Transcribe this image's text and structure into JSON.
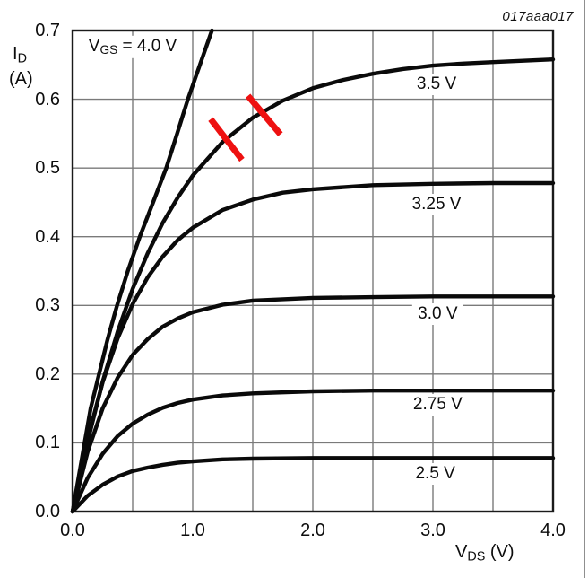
{
  "figure_id": "017aaa017",
  "colors": {
    "curve": "#0a0a0a",
    "grid": "#7a7a7a",
    "border": "#1a1a1a",
    "annotation_red": "#ee1111",
    "page_edge": "#8f8f8f",
    "text": "#0d0d0d"
  },
  "chart_data": {
    "type": "line",
    "title": "",
    "xlabel": "VDS (V)",
    "ylabel": "ID (A)",
    "x_axis": {
      "symbol": "V",
      "subscript": "DS",
      "unit": " (V)",
      "min": 0,
      "max": 4,
      "grid_step": 0.5,
      "tick_values": [
        0,
        1,
        2,
        3,
        4
      ],
      "tick_labels": [
        "0.0",
        "1.0",
        "2.0",
        "3.0",
        "4.0"
      ]
    },
    "y_axis": {
      "symbol": "I",
      "subscript": "D",
      "unit": "(A)",
      "min": 0,
      "max": 0.7,
      "grid_step": 0.1,
      "tick_values": [
        0.7,
        0.6,
        0.5,
        0.4,
        0.3,
        0.2,
        0.1,
        0
      ],
      "tick_labels": [
        "0.7",
        "0.6",
        "0.5",
        "0.4",
        "0.3",
        "0.2",
        "0.1",
        "0.0"
      ]
    },
    "gate_label": {
      "symbol": "V",
      "subscript": "GS",
      "rest": " = 4.0 V",
      "pos": [
        0.5,
        0.676
      ]
    },
    "grid": true,
    "legend_position": "inline-labels",
    "series": [
      {
        "vgs": "4.0 V",
        "label": "",
        "label_pos": null,
        "points": [
          [
            0,
            0
          ],
          [
            0.05,
            0.05
          ],
          [
            0.1,
            0.1
          ],
          [
            0.15,
            0.15
          ],
          [
            0.22,
            0.2
          ],
          [
            0.29,
            0.25
          ],
          [
            0.37,
            0.3
          ],
          [
            0.46,
            0.35
          ],
          [
            0.56,
            0.4
          ],
          [
            0.67,
            0.45
          ],
          [
            0.78,
            0.5
          ],
          [
            0.87,
            0.55
          ],
          [
            0.96,
            0.6
          ],
          [
            1.06,
            0.65
          ],
          [
            1.16,
            0.7
          ]
        ]
      },
      {
        "vgs": "3.5 V",
        "label": "3.5 V",
        "label_pos": [
          3.03,
          0.622
        ],
        "points": [
          [
            0,
            0
          ],
          [
            0.125,
            0.102
          ],
          [
            0.25,
            0.189
          ],
          [
            0.375,
            0.262
          ],
          [
            0.5,
            0.324
          ],
          [
            0.625,
            0.376
          ],
          [
            0.75,
            0.42
          ],
          [
            0.875,
            0.457
          ],
          [
            1,
            0.489
          ],
          [
            1.25,
            0.538
          ],
          [
            1.5,
            0.573
          ],
          [
            1.75,
            0.598
          ],
          [
            2,
            0.616
          ],
          [
            2.25,
            0.628
          ],
          [
            2.5,
            0.637
          ],
          [
            2.75,
            0.644
          ],
          [
            3,
            0.649
          ],
          [
            3.25,
            0.652
          ],
          [
            3.5,
            0.654
          ],
          [
            3.75,
            0.656
          ],
          [
            4,
            0.658
          ]
        ]
      },
      {
        "vgs": "3.25 V",
        "label": "3.25 V",
        "label_pos": [
          3.03,
          0.447
        ],
        "points": [
          [
            0,
            0
          ],
          [
            0.125,
            0.106
          ],
          [
            0.25,
            0.188
          ],
          [
            0.375,
            0.252
          ],
          [
            0.5,
            0.302
          ],
          [
            0.625,
            0.341
          ],
          [
            0.75,
            0.371
          ],
          [
            0.875,
            0.395
          ],
          [
            1,
            0.413
          ],
          [
            1.25,
            0.439
          ],
          [
            1.5,
            0.454
          ],
          [
            1.75,
            0.464
          ],
          [
            2,
            0.469
          ],
          [
            2.5,
            0.475
          ],
          [
            3,
            0.477
          ],
          [
            3.5,
            0.478
          ],
          [
            4,
            0.478
          ]
        ]
      },
      {
        "vgs": "3.0 V",
        "label": "3.0 V",
        "label_pos": [
          3.04,
          0.287
        ],
        "points": [
          [
            0,
            0
          ],
          [
            0.125,
            0.087
          ],
          [
            0.25,
            0.15
          ],
          [
            0.375,
            0.195
          ],
          [
            0.5,
            0.228
          ],
          [
            0.625,
            0.251
          ],
          [
            0.75,
            0.269
          ],
          [
            0.875,
            0.281
          ],
          [
            1,
            0.29
          ],
          [
            1.25,
            0.301
          ],
          [
            1.5,
            0.307
          ],
          [
            2,
            0.311
          ],
          [
            2.5,
            0.312
          ],
          [
            3,
            0.313
          ],
          [
            3.5,
            0.313
          ],
          [
            4,
            0.313
          ]
        ]
      },
      {
        "vgs": "2.75 V",
        "label": "2.75 V",
        "label_pos": [
          3.04,
          0.155
        ],
        "points": [
          [
            0,
            0
          ],
          [
            0.125,
            0.049
          ],
          [
            0.25,
            0.084
          ],
          [
            0.375,
            0.11
          ],
          [
            0.5,
            0.128
          ],
          [
            0.625,
            0.141
          ],
          [
            0.75,
            0.151
          ],
          [
            0.875,
            0.158
          ],
          [
            1,
            0.163
          ],
          [
            1.25,
            0.169
          ],
          [
            1.5,
            0.172
          ],
          [
            2,
            0.175
          ],
          [
            2.5,
            0.176
          ],
          [
            3,
            0.176
          ],
          [
            3.5,
            0.176
          ],
          [
            4,
            0.176
          ]
        ]
      },
      {
        "vgs": "2.5 V",
        "label": "2.5 V",
        "label_pos": [
          3.02,
          0.055
        ],
        "points": [
          [
            0,
            0
          ],
          [
            0.125,
            0.023
          ],
          [
            0.25,
            0.039
          ],
          [
            0.375,
            0.051
          ],
          [
            0.5,
            0.059
          ],
          [
            0.625,
            0.064
          ],
          [
            0.75,
            0.068
          ],
          [
            0.875,
            0.071
          ],
          [
            1,
            0.073
          ],
          [
            1.25,
            0.076
          ],
          [
            1.5,
            0.077
          ],
          [
            2,
            0.078
          ],
          [
            2.5,
            0.078
          ],
          [
            3,
            0.078
          ],
          [
            3.5,
            0.078
          ],
          [
            4,
            0.078
          ]
        ]
      }
    ],
    "annotations": {
      "red_ticks": [
        {
          "x1": 1.15,
          "y1": 0.571,
          "x2": 1.41,
          "y2": 0.512
        },
        {
          "x1": 1.46,
          "y1": 0.605,
          "x2": 1.73,
          "y2": 0.549
        }
      ]
    }
  }
}
